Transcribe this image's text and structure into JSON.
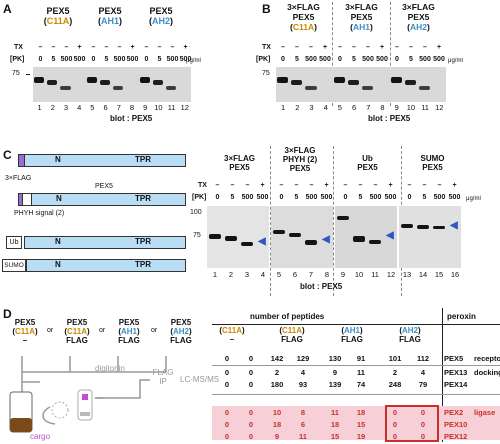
{
  "panelA": {
    "letter": "A",
    "groups": [
      {
        "top": "PEX5",
        "mut": "C11A",
        "color": "orange"
      },
      {
        "top": "PEX5",
        "mut": "AH1",
        "color": "blue"
      },
      {
        "top": "PEX5",
        "mut": "AH2",
        "color": "blue"
      }
    ],
    "tx_label": "TX",
    "tx_values": [
      "–",
      "–",
      "–",
      "+"
    ],
    "pk_label": "[PK]",
    "pk_values": [
      "0",
      "5",
      "500",
      "500"
    ],
    "unit": "μg/ml",
    "mw": "75",
    "lanes": [
      "1",
      "2",
      "3",
      "4",
      "5",
      "6",
      "7",
      "8",
      "9",
      "10",
      "11",
      "12"
    ],
    "blot": "blot : PEX5"
  },
  "panelB": {
    "letter": "B",
    "groups": [
      {
        "top1": "3×FLAG",
        "top": "PEX5",
        "mut": "C11A",
        "color": "orange"
      },
      {
        "top1": "3×FLAG",
        "top": "PEX5",
        "mut": "AH1",
        "color": "blue"
      },
      {
        "top1": "3×FLAG",
        "top": "PEX5",
        "mut": "AH2",
        "color": "blue"
      }
    ],
    "tx_label": "TX",
    "pk_label": "[PK]",
    "unit": "μg/ml",
    "mw": "75",
    "lanes": [
      "1",
      "2",
      "3",
      "4",
      "5",
      "6",
      "7",
      "8",
      "9",
      "10",
      "11",
      "12"
    ],
    "blot": "blot : PEX5"
  },
  "panelC": {
    "letter": "C",
    "constructs": [
      {
        "tag": "",
        "n": "N",
        "tpr": "TPR"
      },
      {
        "tag": "3×FLAG",
        "n": "N",
        "tpr": "TPR",
        "name": "PEX5",
        "signal": "PHYH signal (2)"
      },
      {
        "tag": "Ub",
        "n": "N",
        "tpr": "TPR"
      },
      {
        "tag": "SUMO",
        "n": "N",
        "tpr": "TPR"
      }
    ],
    "groups": [
      {
        "l1": "3×FLAG",
        "l2": "PEX5"
      },
      {
        "l1": "3×FLAG",
        "l2": "PHYH (2)",
        "l3": "PEX5"
      },
      {
        "l1": "Ub",
        "l2": "PEX5"
      },
      {
        "l1": "SUMO",
        "l2": "PEX5"
      }
    ],
    "tx_label": "TX",
    "pk_label": "[PK]",
    "pk_values": [
      "0",
      "5",
      "500",
      "500"
    ],
    "unit": "μg/ml",
    "mw_100": "100",
    "mw_75": "75",
    "lanes": [
      "1",
      "2",
      "3",
      "4",
      "5",
      "6",
      "7",
      "8",
      "9",
      "10",
      "11",
      "12",
      "13",
      "14",
      "15",
      "16"
    ],
    "blot": "blot : PEX5"
  },
  "panelD": {
    "letter": "D",
    "top_constructs": [
      {
        "l1": "PEX5",
        "l2": "C11A",
        "l3": "–"
      },
      {
        "l1": "PEX5",
        "l2": "C11A",
        "l3": "FLAG"
      },
      {
        "l1": "PEX5",
        "l2": "AH1",
        "l3": "FLAG"
      },
      {
        "l1": "PEX5",
        "l2": "AH2",
        "l3": "FLAG"
      }
    ],
    "or_text": "or",
    "digitonin": "digitonin",
    "flag_ip": "FLAG IP",
    "lcms": "LC-MS/MS",
    "cargo": "cargo",
    "table_header": "number of peptides",
    "peroxin_header": "peroxin",
    "col_groups": [
      {
        "l1": "C11A",
        "l2": "–"
      },
      {
        "l1": "C11A",
        "l2": "FLAG"
      },
      {
        "l1": "AH1",
        "l2": "FLAG"
      },
      {
        "l1": "AH2",
        "l2": "FLAG"
      }
    ],
    "rows": [
      {
        "values": [
          "0",
          "0",
          "142",
          "129",
          "130",
          "91",
          "101",
          "112"
        ],
        "peroxin": "PEX5",
        "role": "receptor"
      },
      {
        "values": [
          "0",
          "0",
          "2",
          "4",
          "9",
          "11",
          "2",
          "4"
        ],
        "peroxin": "PEX13",
        "role": "docking"
      },
      {
        "values": [
          "0",
          "0",
          "180",
          "93",
          "139",
          "74",
          "248",
          "79"
        ],
        "peroxin": "PEX14",
        "role": ""
      },
      {
        "values": [
          "0",
          "0",
          "10",
          "8",
          "11",
          "18",
          "0",
          "0"
        ],
        "peroxin": "PEX2",
        "role": "ligase"
      },
      {
        "values": [
          "0",
          "0",
          "18",
          "6",
          "18",
          "15",
          "0",
          "0"
        ],
        "peroxin": "PEX10",
        "role": ""
      },
      {
        "values": [
          "0",
          "0",
          "9",
          "11",
          "15",
          "19",
          "0",
          "0"
        ],
        "peroxin": "PEX12",
        "role": ""
      }
    ]
  }
}
